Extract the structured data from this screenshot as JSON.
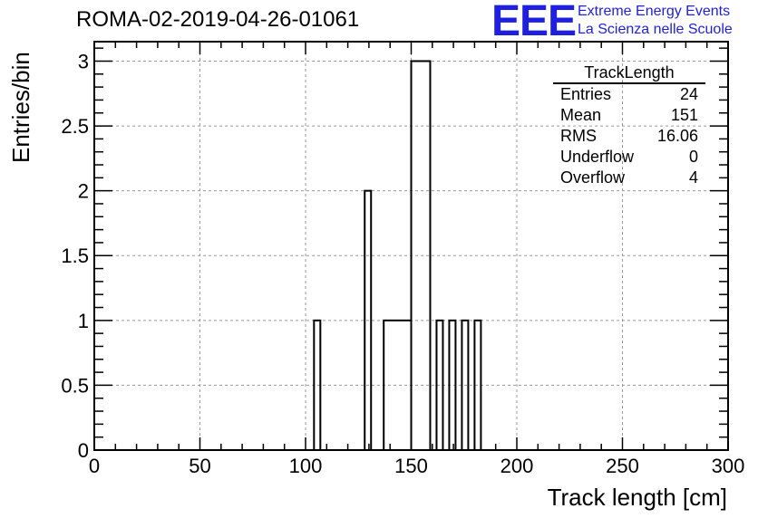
{
  "header": {
    "title": "ROMA-02-2019-04-26-01061",
    "logo_text": "EEE",
    "logo_line1": "Extreme Energy Events",
    "logo_line2": "La Scienza nelle Scuole",
    "logo_color": "#1f1fe0"
  },
  "stats_box": {
    "title": "TrackLength",
    "rows": [
      {
        "label": "Entries",
        "value": "24"
      },
      {
        "label": "Mean",
        "value": "151"
      },
      {
        "label": "RMS",
        "value": "16.06"
      },
      {
        "label": "Underflow",
        "value": "0"
      },
      {
        "label": "Overflow",
        "value": "4"
      }
    ]
  },
  "chart_data": {
    "type": "bar",
    "title": "ROMA-02-2019-04-26-01061",
    "xlabel": "Track length [cm]",
    "ylabel": "Entries/bin",
    "xlim": [
      0,
      300
    ],
    "ylim": [
      0,
      3.15
    ],
    "grid": true,
    "x_ticks": [
      "0",
      "50",
      "100",
      "150",
      "200",
      "250",
      "300"
    ],
    "y_ticks": [
      "0",
      "0.5",
      "1",
      "1.5",
      "2",
      "2.5",
      "3"
    ],
    "bins": [
      {
        "x0": 104,
        "x1": 107,
        "value": 1
      },
      {
        "x0": 128,
        "x1": 131,
        "value": 2
      },
      {
        "x0": 137,
        "x1": 150,
        "value": 1
      },
      {
        "x0": 150,
        "x1": 159,
        "value": 3
      },
      {
        "x0": 162,
        "x1": 165,
        "value": 1
      },
      {
        "x0": 168,
        "x1": 171,
        "value": 1
      },
      {
        "x0": 174,
        "x1": 177,
        "value": 1
      },
      {
        "x0": 180,
        "x1": 183,
        "value": 1
      }
    ]
  }
}
